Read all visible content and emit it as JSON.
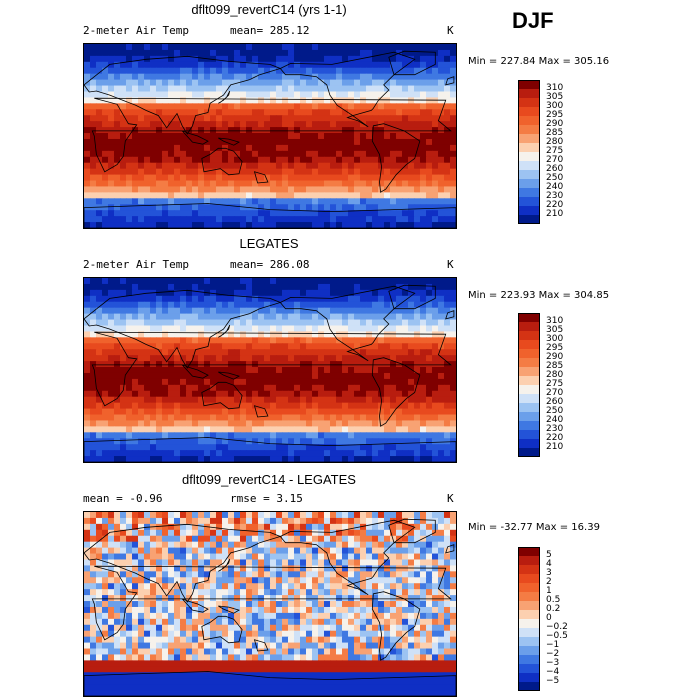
{
  "season": "DJF",
  "panels": [
    {
      "title": "dflt099_revertC14 (yrs 1-1)",
      "left_label": "2-meter Air Temp",
      "mid_label": "mean= 285.12",
      "unit": "K",
      "minmax": "Min = 227.84 Max = 305.16",
      "kind": "temp",
      "colorbar": {
        "labels": [
          "310",
          "305",
          "300",
          "295",
          "290",
          "285",
          "280",
          "275",
          "270",
          "260",
          "250",
          "240",
          "230",
          "220",
          "210"
        ],
        "colors": [
          "#7f0000",
          "#b81d0f",
          "#d43314",
          "#e84a1e",
          "#f0622c",
          "#f47c44",
          "#f8a273",
          "#fcd0b0",
          "#f6f2ec",
          "#cfe1f7",
          "#9cc3f2",
          "#6b9fea",
          "#3f78e2",
          "#2353d8",
          "#0f2fc4",
          "#001a8a"
        ]
      }
    },
    {
      "title": "LEGATES",
      "left_label": "2-meter Air Temp",
      "mid_label": "mean= 286.08",
      "unit": "K",
      "minmax": "Min = 223.93 Max = 304.85",
      "kind": "temp",
      "colorbar": {
        "labels": [
          "310",
          "305",
          "300",
          "295",
          "290",
          "285",
          "280",
          "275",
          "270",
          "260",
          "250",
          "240",
          "230",
          "220",
          "210"
        ],
        "colors": [
          "#7f0000",
          "#b81d0f",
          "#d43314",
          "#e84a1e",
          "#f0622c",
          "#f47c44",
          "#f8a273",
          "#fcd0b0",
          "#f6f2ec",
          "#cfe1f7",
          "#9cc3f2",
          "#6b9fea",
          "#3f78e2",
          "#2353d8",
          "#0f2fc4",
          "#001a8a"
        ]
      }
    },
    {
      "title": "dflt099_revertC14 - LEGATES",
      "left_label": "mean =   -0.96",
      "mid_label": "rmse =    3.15",
      "unit": "K",
      "minmax": "Min = -32.77 Max =  16.39",
      "kind": "diff",
      "colorbar": {
        "labels": [
          "5",
          "4",
          "3",
          "2",
          "1",
          "0.5",
          "0.2",
          "0",
          "−0.2",
          "−0.5",
          "−1",
          "−2",
          "−3",
          "−4",
          "−5"
        ],
        "colors": [
          "#7f0000",
          "#b81d0f",
          "#d43314",
          "#e84a1e",
          "#f0622c",
          "#f47c44",
          "#f8a273",
          "#fcd0b0",
          "#f6f2ec",
          "#cfe1f7",
          "#9cc3f2",
          "#6b9fea",
          "#3f78e2",
          "#2353d8",
          "#0f2fc4",
          "#001a8a"
        ]
      }
    }
  ]
}
